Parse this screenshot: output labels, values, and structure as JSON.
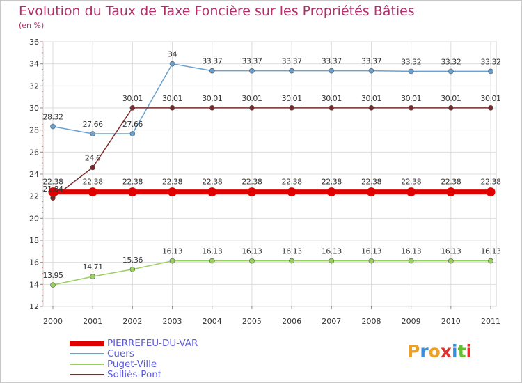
{
  "title": "Evolution du Taux de Taxe Foncière sur les Propriétés Bâties",
  "subtitle": "(en %)",
  "logo": {
    "letters": [
      "P",
      "r",
      "o",
      "x",
      "i",
      "t",
      "i"
    ],
    "colors": [
      "#f0a020",
      "#3a8fd8",
      "#f0a020",
      "#e03030",
      "#3a8fd8",
      "#60c030",
      "#e03030"
    ]
  },
  "chart_data": {
    "type": "line",
    "title": "Evolution du Taux de Taxe Foncière sur les Propriétés Bâties",
    "ylabel": "(en %)",
    "xlabel": "",
    "x": [
      "2000",
      "2001",
      "2002",
      "2003",
      "2004",
      "2005",
      "2006",
      "2007",
      "2008",
      "2009",
      "2010",
      "2011"
    ],
    "ylim": [
      12,
      36
    ],
    "yticks": [
      "12",
      "14",
      "16",
      "18",
      "20",
      "22",
      "24",
      "26",
      "28",
      "30",
      "32",
      "34",
      "36"
    ],
    "grid": true,
    "series": [
      {
        "name": "PIERREFEU-DU-VAR",
        "color": "#e00000",
        "values": [
          22.38,
          22.38,
          22.38,
          22.38,
          22.38,
          22.38,
          22.38,
          22.38,
          22.38,
          22.38,
          22.38,
          22.38
        ],
        "labels": [
          "22.38",
          "22.38",
          "22.38",
          "22.38",
          "22.38",
          "22.38",
          "22.38",
          "22.38",
          "22.38",
          "22.38",
          "22.38",
          "22.38"
        ]
      },
      {
        "name": "Cuers",
        "color": "#6aa0d0",
        "values": [
          28.32,
          27.66,
          27.66,
          34,
          33.37,
          33.37,
          33.37,
          33.37,
          33.37,
          33.32,
          33.32,
          33.32
        ],
        "labels": [
          "28.32",
          "27.66",
          "27.66",
          "34",
          "33.37",
          "33.37",
          "33.37",
          "33.37",
          "33.37",
          "33.32",
          "33.32",
          "33.32"
        ]
      },
      {
        "name": "Puget-Ville",
        "color": "#9ad060",
        "values": [
          13.95,
          14.71,
          15.36,
          16.13,
          16.13,
          16.13,
          16.13,
          16.13,
          16.13,
          16.13,
          16.13,
          16.13
        ],
        "labels": [
          "13.95",
          "14.71",
          "15.36",
          "16.13",
          "16.13",
          "16.13",
          "16.13",
          "16.13",
          "16.13",
          "16.13",
          "16.13",
          "16.13"
        ]
      },
      {
        "name": "Solliès-Pont",
        "color": "#7a2a2a",
        "values": [
          21.84,
          24.6,
          30.01,
          30.01,
          30.01,
          30.01,
          30.01,
          30.01,
          30.01,
          30.01,
          30.01,
          30.01
        ],
        "labels": [
          "21.84",
          "24.6",
          "30.01",
          "30.01",
          "30.01",
          "30.01",
          "30.01",
          "30.01",
          "30.01",
          "30.01",
          "30.01",
          "30.01"
        ]
      }
    ]
  }
}
